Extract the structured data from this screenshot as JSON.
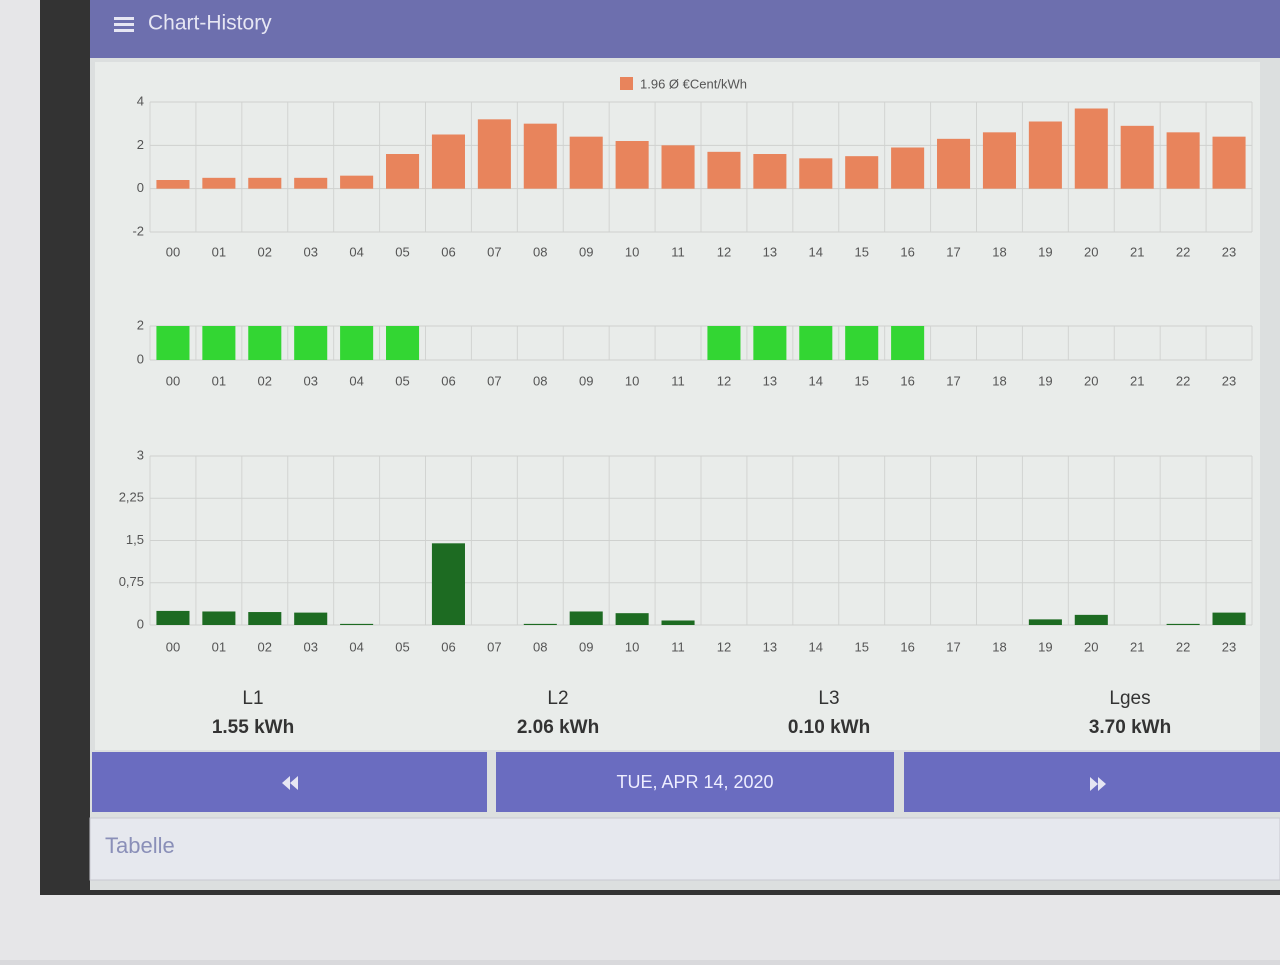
{
  "header": {
    "title": "Chart-History"
  },
  "chart_data": [
    {
      "type": "bar",
      "legend": "1.96 Ø €Cent/kWh",
      "color": "#e8845c",
      "categories": [
        "00",
        "01",
        "02",
        "03",
        "04",
        "05",
        "06",
        "07",
        "08",
        "09",
        "10",
        "11",
        "12",
        "13",
        "14",
        "15",
        "16",
        "17",
        "18",
        "19",
        "20",
        "21",
        "22",
        "23"
      ],
      "values": [
        0.4,
        0.5,
        0.5,
        0.5,
        0.6,
        1.6,
        2.5,
        3.2,
        3.0,
        2.4,
        2.2,
        2.0,
        1.7,
        1.6,
        1.4,
        1.5,
        1.9,
        2.3,
        2.6,
        3.1,
        3.7,
        2.9,
        2.6,
        2.4
      ],
      "ylim": [
        -2,
        4
      ],
      "yticks": [
        -2,
        0,
        2,
        4
      ],
      "grid": true
    },
    {
      "type": "bar",
      "color": "#33d633",
      "categories": [
        "00",
        "01",
        "02",
        "03",
        "04",
        "05",
        "06",
        "07",
        "08",
        "09",
        "10",
        "11",
        "12",
        "13",
        "14",
        "15",
        "16",
        "17",
        "18",
        "19",
        "20",
        "21",
        "22",
        "23"
      ],
      "values": [
        2,
        2,
        2,
        2,
        2,
        2,
        0,
        0,
        0,
        0,
        0,
        0,
        2,
        2,
        2,
        2,
        2,
        0,
        0,
        0,
        0,
        0,
        0,
        0
      ],
      "ylim": [
        0,
        2
      ],
      "yticks": [
        0,
        2
      ],
      "grid": true
    },
    {
      "type": "bar",
      "color": "#1d6b22",
      "categories": [
        "00",
        "01",
        "02",
        "03",
        "04",
        "05",
        "06",
        "07",
        "08",
        "09",
        "10",
        "11",
        "12",
        "13",
        "14",
        "15",
        "16",
        "17",
        "18",
        "19",
        "20",
        "21",
        "22",
        "23"
      ],
      "values": [
        0.25,
        0.24,
        0.23,
        0.22,
        0.02,
        0,
        1.45,
        0,
        0.02,
        0.24,
        0.21,
        0.08,
        0,
        0,
        0,
        0,
        0,
        0,
        0,
        0.1,
        0.18,
        0,
        0.02,
        0.22
      ],
      "ylim": [
        0,
        3
      ],
      "yticks": [
        0,
        {
          "value": 0.75,
          "label": "0,75"
        },
        {
          "value": 1.5,
          "label": "1,5"
        },
        {
          "value": 2.25,
          "label": "2,25"
        },
        3
      ],
      "grid": true
    }
  ],
  "summary": [
    {
      "label": "L1",
      "value": "1.55 kWh"
    },
    {
      "label": "L2",
      "value": "2.06 kWh"
    },
    {
      "label": "L3",
      "value": "0.10 kWh"
    },
    {
      "label": "Lges",
      "value": "3.70 kWh"
    }
  ],
  "nav": {
    "date": "TUE, APR 14, 2020"
  },
  "footer": {
    "tab": "Tabelle"
  }
}
